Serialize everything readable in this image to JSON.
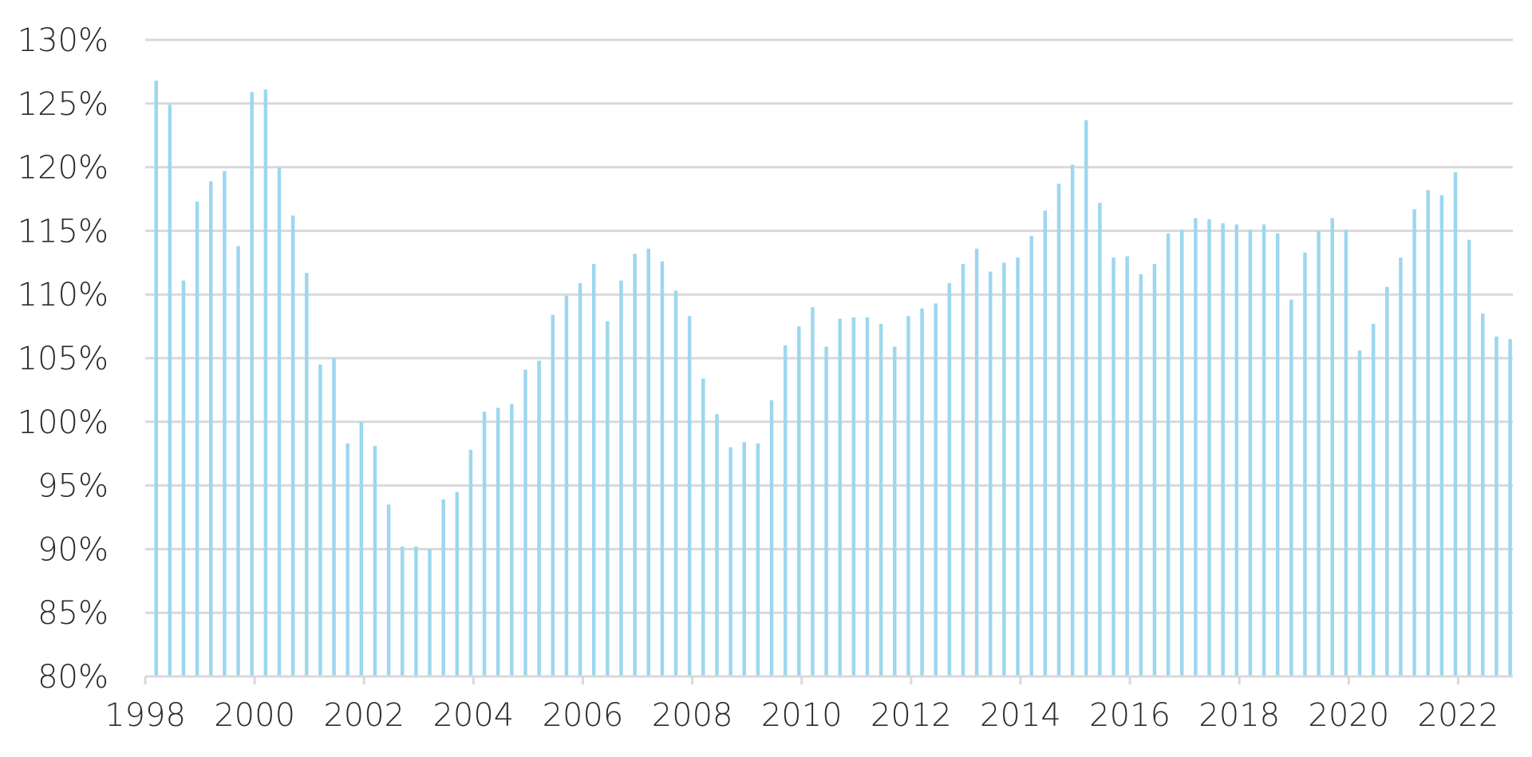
{
  "chart_data": {
    "type": "bar",
    "title": "",
    "xlabel": "",
    "ylabel": "",
    "ylim": [
      80,
      130
    ],
    "y_ticks": [
      80,
      85,
      90,
      95,
      100,
      105,
      110,
      115,
      120,
      125,
      130
    ],
    "y_tick_labels": [
      "80%",
      "85%",
      "90%",
      "95%",
      "100%",
      "105%",
      "110%",
      "115%",
      "120%",
      "125%",
      "130%"
    ],
    "x_range": [
      1998.0,
      2023.0
    ],
    "x_ticks": [
      1998,
      2000,
      2002,
      2004,
      2006,
      2008,
      2010,
      2012,
      2014,
      2016,
      2018,
      2020,
      2022
    ],
    "x_tick_labels": [
      "1998",
      "2000",
      "2002",
      "2004",
      "2006",
      "2008",
      "2010",
      "2012",
      "2014",
      "2016",
      "2018",
      "2020",
      "2022"
    ],
    "grid": true,
    "bar_color": "#9dd7ef",
    "grid_color": "#d9d9d9",
    "series": [
      {
        "frequency": "quarterly",
        "x": [
          1998.2,
          1998.45,
          1998.7,
          1998.95,
          1999.2,
          1999.45,
          1999.7,
          1999.95,
          2000.2,
          2000.45,
          2000.7,
          2000.95,
          2001.2,
          2001.45,
          2001.7,
          2001.95,
          2002.2,
          2002.45,
          2002.7,
          2002.95,
          2003.2,
          2003.45,
          2003.7,
          2003.95,
          2004.2,
          2004.45,
          2004.7,
          2004.95,
          2005.2,
          2005.45,
          2005.7,
          2005.95,
          2006.2,
          2006.45,
          2006.7,
          2006.95,
          2007.2,
          2007.45,
          2007.7,
          2007.95,
          2008.2,
          2008.45,
          2008.7,
          2008.95,
          2009.2,
          2009.45,
          2009.7,
          2009.95,
          2010.2,
          2010.45,
          2010.7,
          2010.95,
          2011.2,
          2011.45,
          2011.7,
          2011.95,
          2012.2,
          2012.45,
          2012.7,
          2012.95,
          2013.2,
          2013.45,
          2013.7,
          2013.95,
          2014.2,
          2014.45,
          2014.7,
          2014.95,
          2015.2,
          2015.45,
          2015.7,
          2015.95,
          2016.2,
          2016.45,
          2016.7,
          2016.95,
          2017.2,
          2017.45,
          2017.7,
          2017.95,
          2018.2,
          2018.45,
          2018.7,
          2018.95,
          2019.2,
          2019.45,
          2019.7,
          2019.95,
          2020.2,
          2020.45,
          2020.7,
          2020.95,
          2021.2,
          2021.45,
          2021.7,
          2021.95,
          2022.2,
          2022.45,
          2022.7,
          2022.95
        ],
        "values": [
          126.8,
          124.9,
          111.1,
          117.3,
          118.9,
          119.7,
          113.8,
          125.9,
          126.1,
          120.0,
          116.2,
          111.7,
          104.5,
          105.0,
          98.3,
          100.0,
          98.1,
          93.5,
          90.2,
          90.2,
          90.0,
          93.9,
          94.5,
          97.8,
          100.8,
          101.1,
          101.4,
          104.1,
          104.8,
          108.4,
          109.9,
          110.9,
          112.4,
          107.9,
          111.1,
          113.2,
          113.6,
          112.6,
          110.3,
          108.3,
          103.4,
          100.6,
          98.0,
          98.4,
          98.3,
          101.7,
          106.0,
          107.5,
          109.0,
          105.9,
          108.1,
          108.2,
          108.2,
          107.7,
          105.9,
          108.3,
          108.9,
          109.3,
          110.9,
          112.4,
          113.6,
          111.8,
          112.5,
          112.9,
          114.6,
          116.6,
          118.7,
          120.2,
          123.7,
          117.2,
          112.9,
          113.0,
          111.6,
          112.4,
          114.8,
          115.1,
          116.0,
          115.9,
          115.6,
          115.5,
          115.1,
          115.5,
          114.8,
          109.6,
          113.3,
          115.0,
          116.0,
          115.1,
          105.6,
          107.7,
          110.6,
          112.9,
          116.7,
          118.2,
          117.8,
          119.6,
          114.3,
          108.5,
          106.7,
          106.5
        ]
      }
    ]
  }
}
